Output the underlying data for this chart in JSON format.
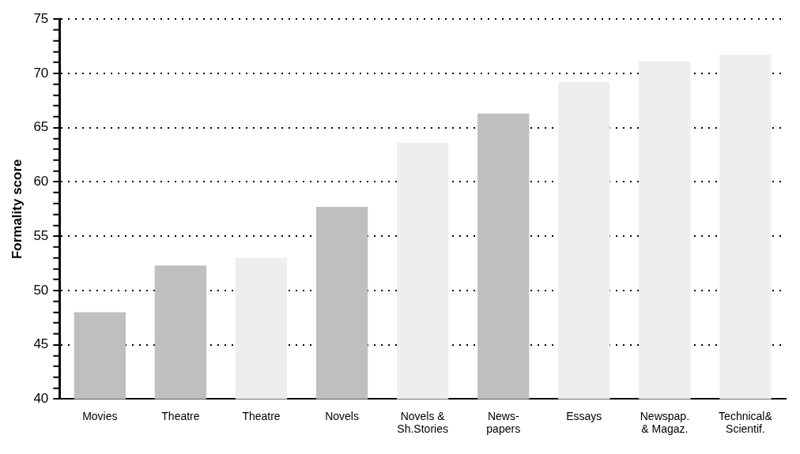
{
  "chart_data": {
    "type": "bar",
    "ylabel": "Formality score",
    "categories": [
      "Movies",
      "Theatre",
      "Theatre",
      "Novels",
      "Novels &\nSh.Stories",
      "News-\npapers",
      "Essays",
      "Newspap.\n& Magaz.",
      "Technical&\nScientif."
    ],
    "values": [
      48.0,
      52.3,
      53.0,
      57.7,
      63.6,
      66.3,
      69.2,
      71.1,
      71.7
    ],
    "colors": [
      "#bfbfbf",
      "#bfbfbf",
      "#eeeeee",
      "#bfbfbf",
      "#eeeeee",
      "#bfbfbf",
      "#eeeeee",
      "#eeeeee",
      "#eeeeee"
    ],
    "ylim": [
      40,
      75
    ],
    "yticks": [
      40,
      {
        "value": 41,
        "label": null
      },
      {
        "value": 42,
        "label": null
      },
      {
        "value": 43,
        "label": null
      },
      {
        "value": 44,
        "label": null
      },
      45,
      {
        "value": 46,
        "label": null
      },
      {
        "value": 47,
        "label": null
      },
      {
        "value": 48,
        "label": null
      },
      {
        "value": 49,
        "label": null
      },
      50,
      {
        "value": 51,
        "label": null
      },
      {
        "value": 52,
        "label": null
      },
      {
        "value": 53,
        "label": null
      },
      {
        "value": 54,
        "label": null
      },
      55,
      {
        "value": 56,
        "label": null
      },
      {
        "value": 57,
        "label": null
      },
      {
        "value": 58,
        "label": null
      },
      {
        "value": 59,
        "label": null
      },
      60,
      {
        "value": 61,
        "label": null
      },
      {
        "value": 62,
        "label": null
      },
      {
        "value": 63,
        "label": null
      },
      {
        "value": 64,
        "label": null
      },
      65,
      {
        "value": 66,
        "label": null
      },
      {
        "value": 67,
        "label": null
      },
      {
        "value": 68,
        "label": null
      },
      {
        "value": 69,
        "label": null
      },
      70,
      {
        "value": 71,
        "label": null
      },
      {
        "value": 72,
        "label": null
      },
      {
        "value": 73,
        "label": null
      },
      {
        "value": 74,
        "label": null
      },
      75
    ],
    "grid": "y",
    "line_style": "dotted"
  }
}
